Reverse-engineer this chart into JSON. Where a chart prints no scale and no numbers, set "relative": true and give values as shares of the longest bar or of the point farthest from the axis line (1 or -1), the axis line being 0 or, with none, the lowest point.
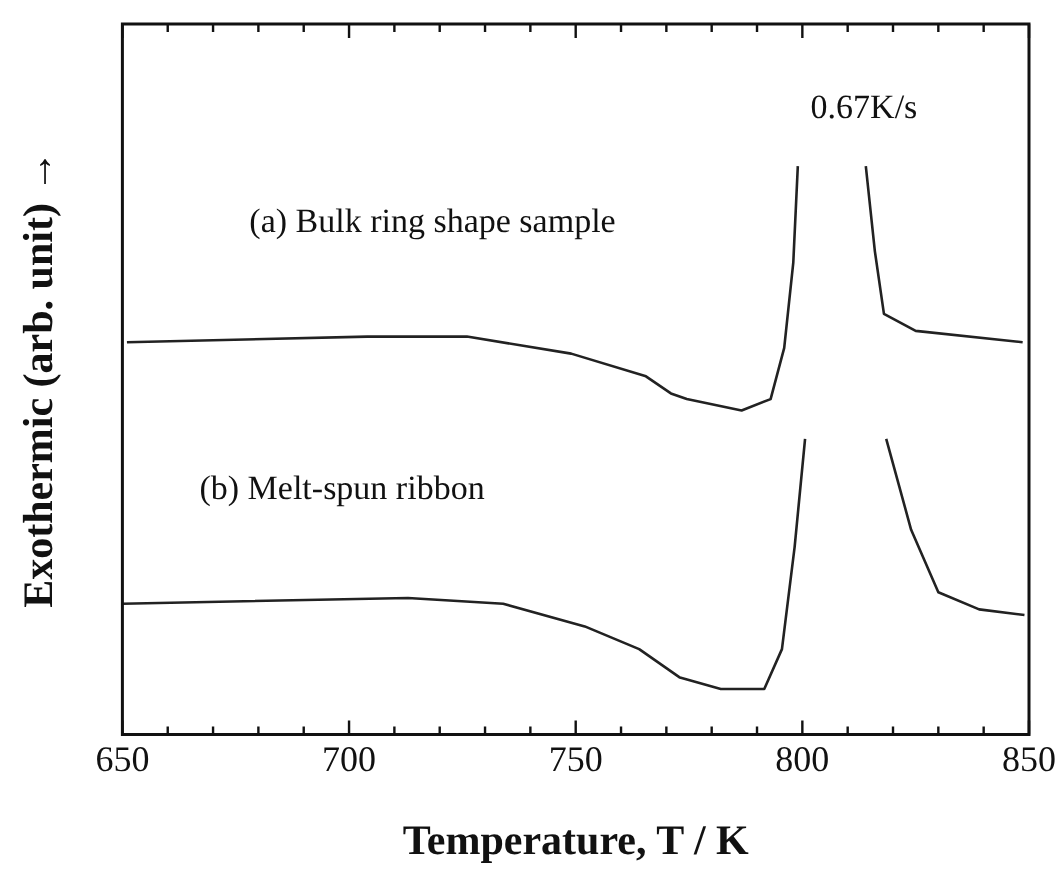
{
  "chart_data": {
    "type": "line",
    "relative": true,
    "xlabel": "Temperature, T / K",
    "ylabel": "Exothermic (arb. unit) →",
    "annotations": [
      "0.67K/s",
      "(a) Bulk ring shape sample",
      "(b) Melt-spun ribbon"
    ],
    "xlim": [
      650,
      850
    ],
    "xticks": [
      650,
      {
        "value": 660,
        "label": null
      },
      {
        "value": 670,
        "label": null
      },
      {
        "value": 680,
        "label": null
      },
      {
        "value": 690,
        "label": null
      },
      700,
      {
        "value": 710,
        "label": null
      },
      {
        "value": 720,
        "label": null
      },
      {
        "value": 730,
        "label": null
      },
      {
        "value": 740,
        "label": null
      },
      750,
      {
        "value": 760,
        "label": null
      },
      {
        "value": 770,
        "label": null
      },
      {
        "value": 780,
        "label": null
      },
      {
        "value": 790,
        "label": null
      },
      800,
      {
        "value": 810,
        "label": null
      },
      {
        "value": 820,
        "label": null
      },
      {
        "value": 830,
        "label": null
      },
      {
        "value": 840,
        "label": null
      },
      850
    ],
    "grid": false,
    "legend": false,
    "marker": "none",
    "line_style": "solid",
    "series": [
      {
        "color": "#222222",
        "x": [
          651,
          704,
          726,
          749,
          765.5,
          771,
          774.5,
          786.6,
          793,
          796,
          798,
          799,
          806,
          814,
          816,
          818,
          825,
          848.6
        ],
        "values": [
          0.69,
          0.7,
          0.7,
          0.67,
          0.63,
          0.6,
          0.59,
          0.57,
          0.59,
          0.68,
          0.83,
          1.0,
          null,
          1.0,
          0.85,
          0.74,
          0.71,
          0.69
        ]
      },
      {
        "color": "#222222",
        "x": [
          650,
          713,
          734,
          752,
          764,
          773,
          782,
          791.6,
          795.5,
          798.3,
          800.6,
          810,
          818.5,
          824,
          830,
          839,
          849
        ],
        "values": [
          0.23,
          0.24,
          0.23,
          0.19,
          0.15,
          0.1,
          0.08,
          0.08,
          0.15,
          0.33,
          0.52,
          null,
          0.52,
          0.36,
          0.25,
          0.22,
          0.21
        ]
      }
    ]
  }
}
